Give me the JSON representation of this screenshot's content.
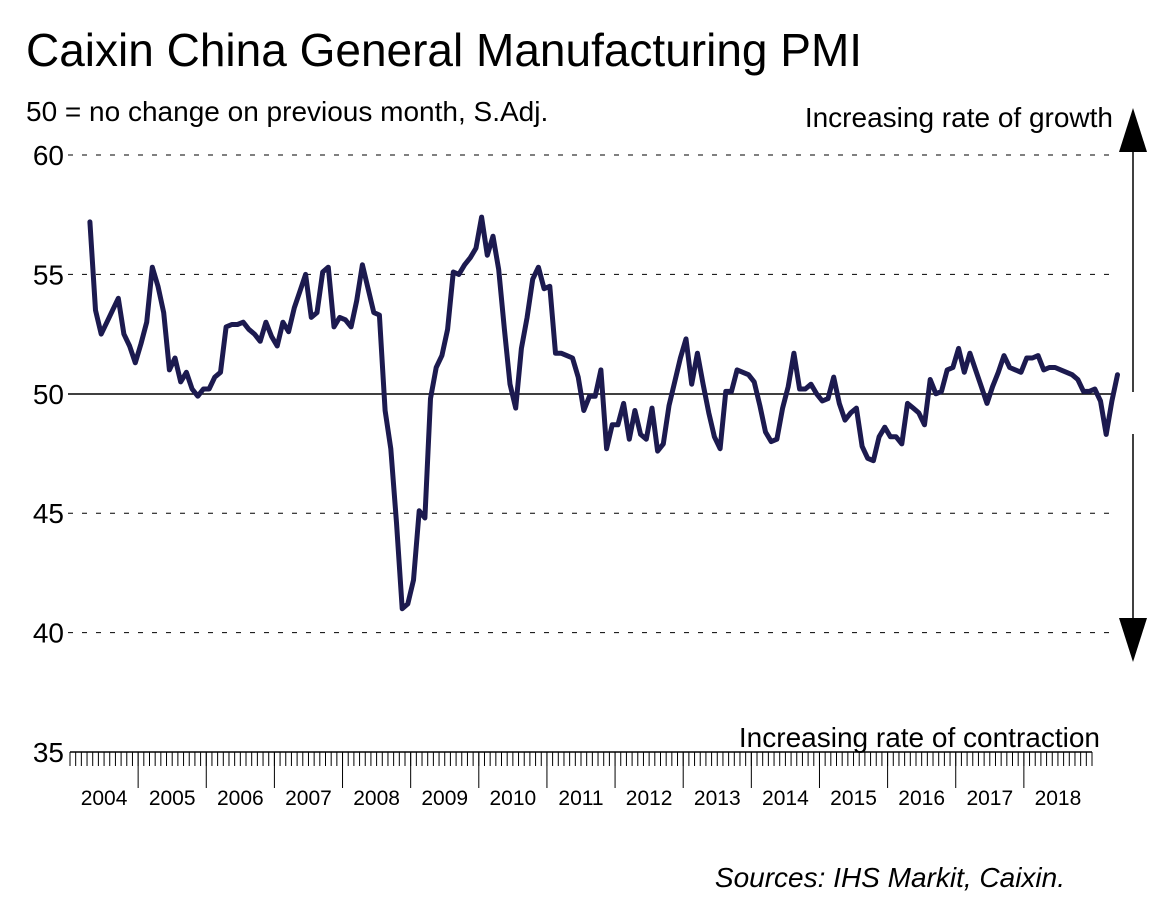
{
  "chart_data": {
    "type": "line",
    "title": "Caixin China General Manufacturing PMI",
    "subtitle": "50 = no change on previous month, S.Adj.",
    "annotation_top": "Increasing rate of growth",
    "annotation_bottom": "Increasing rate of contraction",
    "source": "Sources: IHS Markit, Caixin.",
    "ylim": [
      35,
      60
    ],
    "yticks": [
      "60",
      "55",
      "50",
      "45",
      "40",
      "35"
    ],
    "reference_line": 50,
    "grid": "dashed horizontal",
    "x_start": "2004-04",
    "x_labels": [
      "2004",
      "2005",
      "2006",
      "2007",
      "2008",
      "2009",
      "2010",
      "2011",
      "2012",
      "2013",
      "2014",
      "2015",
      "2016",
      "2017",
      "2018"
    ],
    "series": [
      {
        "color": "#1c1a4f",
        "values": [
          57.2,
          53.5,
          52.5,
          53.0,
          53.5,
          54.0,
          52.5,
          52.0,
          51.3,
          52.1,
          53.0,
          55.3,
          54.5,
          53.4,
          51.0,
          51.5,
          50.5,
          50.9,
          50.2,
          49.9,
          50.2,
          50.2,
          50.7,
          50.9,
          52.8,
          52.9,
          52.9,
          53.0,
          52.7,
          52.5,
          52.2,
          53.0,
          52.4,
          52.0,
          53.0,
          52.6,
          53.6,
          54.3,
          55.0,
          53.2,
          53.4,
          55.1,
          55.3,
          52.8,
          53.2,
          53.1,
          52.8,
          53.9,
          55.4,
          54.4,
          53.4,
          53.3,
          49.3,
          47.7,
          44.6,
          41.0,
          41.2,
          42.2,
          45.1,
          44.8,
          49.8,
          51.1,
          51.6,
          52.7,
          55.1,
          55.0,
          55.4,
          55.7,
          56.1,
          57.4,
          55.8,
          56.6,
          55.2,
          52.7,
          50.4,
          49.4,
          51.9,
          53.2,
          54.8,
          55.3,
          54.4,
          54.5,
          51.7,
          51.7,
          51.6,
          51.5,
          50.7,
          49.3,
          49.9,
          49.9,
          51.0,
          47.7,
          48.7,
          48.7,
          49.6,
          48.1,
          49.3,
          48.3,
          48.1,
          49.4,
          47.6,
          47.9,
          49.5,
          50.5,
          51.5,
          52.3,
          50.4,
          51.7,
          50.4,
          49.2,
          48.2,
          47.7,
          50.1,
          50.1,
          51.0,
          50.9,
          50.8,
          50.5,
          49.5,
          48.4,
          48.0,
          48.1,
          49.4,
          50.3,
          51.7,
          50.2,
          50.2,
          50.4,
          50.0,
          49.7,
          49.8,
          50.7,
          49.6,
          48.9,
          49.2,
          49.4,
          47.8,
          47.3,
          47.2,
          48.2,
          48.6,
          48.2,
          48.2,
          47.9,
          49.6,
          49.4,
          49.2,
          48.7,
          50.6,
          50.0,
          50.1,
          51.0,
          51.1,
          51.9,
          50.9,
          51.7,
          51.0,
          50.3,
          49.6,
          50.3,
          50.9,
          51.6,
          51.1,
          51.0,
          50.9,
          51.5,
          51.5,
          51.6,
          51.0,
          51.1,
          51.1,
          51.0,
          50.9,
          50.8,
          50.6,
          50.1,
          50.1,
          50.2,
          49.7,
          48.3,
          49.7,
          50.8
        ]
      }
    ]
  }
}
